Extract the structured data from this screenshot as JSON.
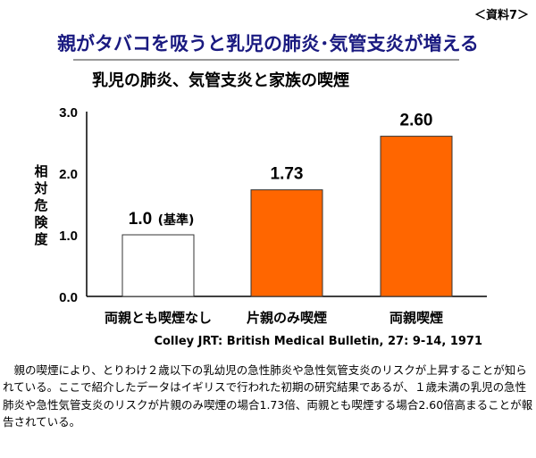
{
  "ref_label": "＜資料7＞",
  "title": "親がタバコを吸うと乳児の肺炎･気管支炎が増える",
  "chart_data": {
    "type": "bar",
    "title": "乳児の肺炎、気管支炎と家族の喫煙",
    "ylabel": "相対危険度",
    "xlabel": "",
    "ylim": [
      0,
      3.0
    ],
    "yticks": [
      "0.0",
      "1.0",
      "2.0",
      "3.0"
    ],
    "categories": [
      "両親とも喫煙なし",
      "片親のみ喫煙",
      "両親喫煙"
    ],
    "values": [
      1.0,
      1.73,
      2.6
    ],
    "data_labels": [
      "1.0",
      "1.73",
      "2.60"
    ],
    "baseline_note": "(基準)",
    "colors": [
      "#ffffff",
      "#ff6600",
      "#ff6600"
    ],
    "grid": false
  },
  "citation": "Colley JRT: British Medical Bulletin, 27: 9-14, 1971",
  "paragraph": "親の喫煙により、とりわけ２歳以下の乳幼児の急性肺炎や急性気管支炎のリスクが上昇することが知られている。ここで紹介したデータはイギリスで行われた初期の研究結果であるが、１歳未満の乳児の急性肺炎や急性気管支炎のリスクが片親のみ喫煙の場合1.73倍、両親とも喫煙する場合2.60倍高まることが報告されている。"
}
